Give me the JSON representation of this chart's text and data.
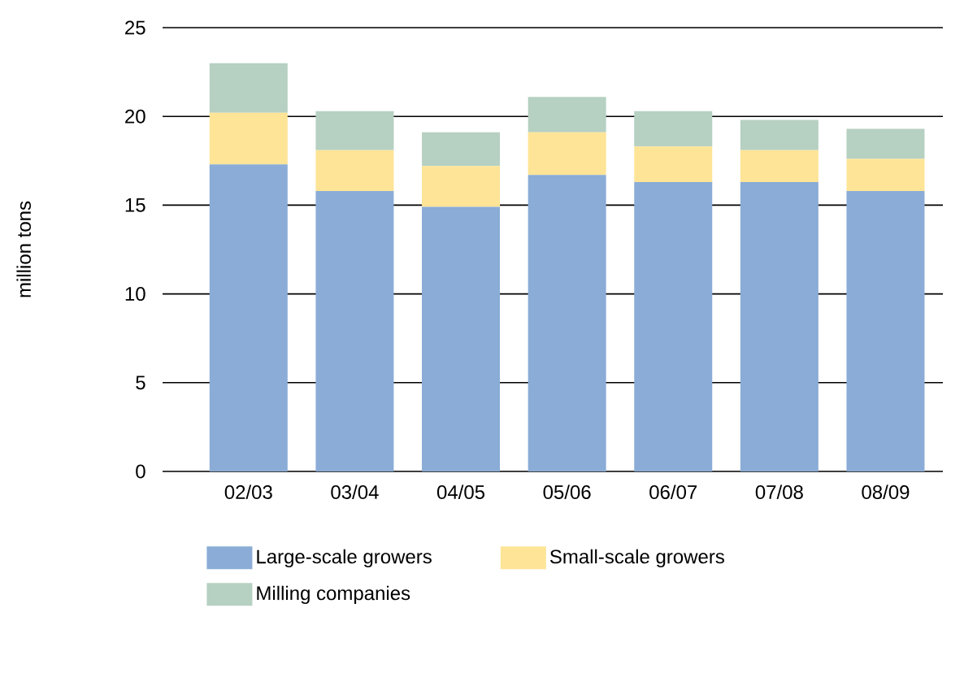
{
  "chart_data": {
    "type": "bar",
    "stacked": true,
    "ylabel": "million tons",
    "categories": [
      "02/03",
      "03/04",
      "04/05",
      "05/06",
      "06/07",
      "07/08",
      "08/09"
    ],
    "series": [
      {
        "name": "Large-scale growers",
        "color": "#8aacd6",
        "values": [
          17.3,
          15.8,
          14.9,
          16.7,
          16.3,
          16.3,
          15.8
        ]
      },
      {
        "name": "Small-scale growers",
        "color": "#fee496",
        "values": [
          2.9,
          2.3,
          2.3,
          2.4,
          2.0,
          1.8,
          1.8
        ]
      },
      {
        "name": "Milling companies",
        "color": "#b6d0c2",
        "values": [
          2.8,
          2.2,
          1.9,
          2.0,
          2.0,
          1.7,
          1.7
        ]
      }
    ],
    "ylim": [
      0,
      25
    ],
    "yticks": [
      0,
      5,
      10,
      15,
      20,
      25
    ],
    "grid": "y",
    "legend": "bottom"
  }
}
